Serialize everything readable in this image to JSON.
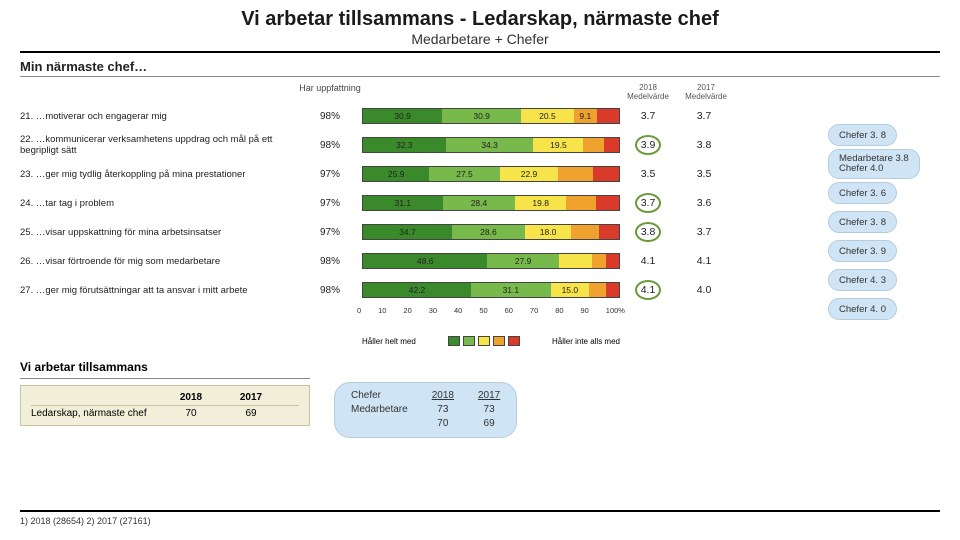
{
  "title": "Vi arbetar tillsammans - Ledarskap, närmaste chef",
  "subtitle": "Medarbetare + Chefer",
  "section_heading": "Min närmaste chef…",
  "col_headers": {
    "uppfattning": "Har uppfattning",
    "y2018": "2018",
    "y2017": "2017",
    "medel": "Medelvärde"
  },
  "segment_colors": [
    "#3a8a2c",
    "#78b94b",
    "#f6e44a",
    "#f0a22e",
    "#d93a2a"
  ],
  "rows": [
    {
      "num": "21.",
      "q": "…motiverar och engagerar mig",
      "upp": "98%",
      "segs": [
        30.9,
        30.9,
        20.5,
        9.1,
        8.6
      ],
      "labels": [
        "30.9",
        "30.9",
        "20.5",
        "9.1",
        ""
      ],
      "m18": "3.7",
      "m19": "3.7",
      "circled": false,
      "call": "Chefer  3. 8",
      "tall": false
    },
    {
      "num": "22.",
      "q": "…kommunicerar verksamhetens uppdrag och mål på ett begripligt sätt",
      "upp": "98%",
      "segs": [
        32.3,
        34.3,
        19.5,
        7.9,
        6.0
      ],
      "labels": [
        "32.3",
        "34.3",
        "19.5",
        "",
        ""
      ],
      "m18": "3.9",
      "m19": "3.8",
      "circled": true,
      "call": "Medarbetare 3.8\nChefer 4.0",
      "tall": true
    },
    {
      "num": "23.",
      "q": "…ger mig tydlig återkoppling på mina prestationer",
      "upp": "97%",
      "segs": [
        25.9,
        27.5,
        22.9,
        13.7,
        10.0
      ],
      "labels": [
        "25.9",
        "27.5",
        "22.9",
        "",
        ""
      ],
      "m18": "3.5",
      "m19": "3.5",
      "circled": false,
      "call": "Chefer  3. 6",
      "tall": false
    },
    {
      "num": "24.",
      "q": "…tar tag i problem",
      "upp": "97%",
      "segs": [
        31.1,
        28.4,
        19.8,
        11.7,
        9.0
      ],
      "labels": [
        "31.1",
        "28.4",
        "19.8",
        "",
        ""
      ],
      "m18": "3.7",
      "m19": "3.6",
      "circled": true,
      "call": "Chefer  3. 8",
      "tall": false
    },
    {
      "num": "25.",
      "q": "…visar uppskattning för mina arbetsinsatser",
      "upp": "97%",
      "segs": [
        34.7,
        28.6,
        18.0,
        10.7,
        8.0
      ],
      "labels": [
        "34.7",
        "28.6",
        "18.0",
        "",
        ""
      ],
      "m18": "3.8",
      "m19": "3.7",
      "circled": true,
      "call": "Chefer  3. 9",
      "tall": false
    },
    {
      "num": "26.",
      "q": "…visar förtroende för mig som medarbetare",
      "upp": "98%",
      "segs": [
        48.6,
        27.9,
        13.0,
        5.5,
        5.0
      ],
      "labels": [
        "48.6",
        "27.9",
        "",
        "",
        ""
      ],
      "m18": "4.1",
      "m19": "4.1",
      "circled": false,
      "call": "Chefer  4. 3",
      "tall": false
    },
    {
      "num": "27.",
      "q": "…ger mig förutsättningar att ta ansvar i mitt arbete",
      "upp": "98%",
      "segs": [
        42.2,
        31.1,
        15.0,
        6.7,
        5.0
      ],
      "labels": [
        "42.2",
        "31.1",
        "15.0",
        "",
        ""
      ],
      "m18": "4.1",
      "m19": "4.0",
      "circled": true,
      "call": "Chefer  4. 0",
      "tall": false
    }
  ],
  "axis_ticks": [
    "0",
    "10",
    "20",
    "30",
    "40",
    "50",
    "60",
    "70",
    "80",
    "90",
    "100%"
  ],
  "legend_left": "Håller helt med",
  "legend_right": "Håller inte alls med",
  "bottom_title": "Vi arbetar tillsammans",
  "mini_table": {
    "c1": "Ledarskap, närmaste chef",
    "h1": "2018",
    "h2": "2017",
    "v1": "70",
    "v2": "69"
  },
  "bluebox": {
    "col1": [
      "",
      "Chefer",
      "Medarbetare"
    ],
    "col2": [
      "2018",
      "73",
      "70"
    ],
    "col3": [
      "2017",
      "73",
      "69"
    ]
  },
  "footer": "1) 2018 (28654)   2) 2017 (27161)"
}
